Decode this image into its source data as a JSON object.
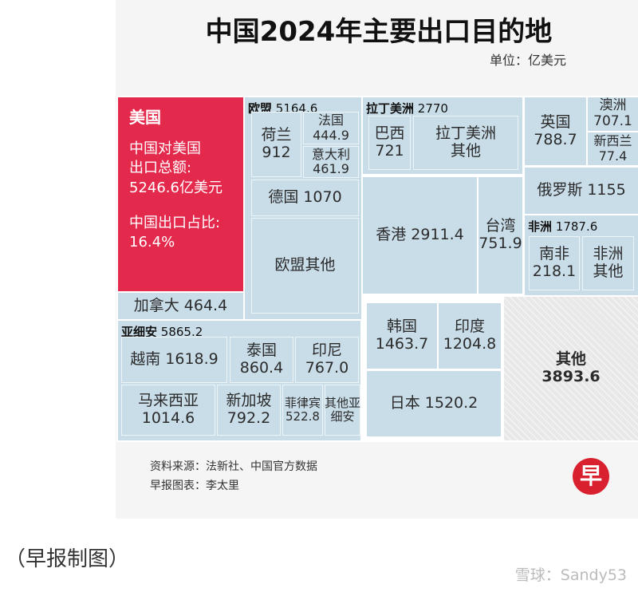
{
  "title": "中国2024年主要出口目的地",
  "unit": "单位：亿美元",
  "chart_data": {
    "type": "treemap",
    "color": "#c9dde9",
    "groups": [
      {
        "name": "美国",
        "value": 5246.6,
        "value_label": "5246.6亿美元",
        "value_caption": [
          "中国对美国",
          "出口总额:"
        ],
        "share": 16.4,
        "share_label": "16.4%",
        "share_caption": "中国出口占比:",
        "color": "#e42a4c"
      },
      {
        "name": "加拿大",
        "value": 464.4
      },
      {
        "name": "欧盟",
        "value": 5164.6,
        "children": [
          {
            "name": "荷兰",
            "value": 912
          },
          {
            "name": "法国",
            "value": 444.9
          },
          {
            "name": "意大利",
            "value": 461.9
          },
          {
            "name": "德国",
            "value": 1070
          },
          {
            "name": "欧盟其他"
          }
        ]
      },
      {
        "name": "拉丁美洲",
        "value": 2770,
        "children": [
          {
            "name": "巴西",
            "value": 721
          },
          {
            "name": "拉丁美洲其他"
          }
        ]
      },
      {
        "name": "英国",
        "value": 788.7
      },
      {
        "name": "澳洲",
        "value": 707.1
      },
      {
        "name": "新西兰",
        "value": 77.4
      },
      {
        "name": "俄罗斯",
        "value": 1155
      },
      {
        "name": "香港",
        "value": 2911.4
      },
      {
        "name": "台湾",
        "value": 751.9
      },
      {
        "name": "非洲",
        "value": 1787.6,
        "children": [
          {
            "name": "南非",
            "value": 218.1
          },
          {
            "name": "非洲其他"
          }
        ]
      },
      {
        "name": "亚细安",
        "value": 5865.2,
        "children": [
          {
            "name": "越南",
            "value": 1618.9
          },
          {
            "name": "泰国",
            "value": 860.4
          },
          {
            "name": "印尼",
            "value": 767,
            "value_label": "767.0"
          },
          {
            "name": "马来西亚",
            "value": 1014.6
          },
          {
            "name": "新加坡",
            "value": 792.2
          },
          {
            "name": "菲律宾",
            "value": 522.8
          },
          {
            "name": "其他亚细安"
          }
        ]
      },
      {
        "name": "韩国",
        "value": 1463.7
      },
      {
        "name": "印度",
        "value": 1204.8
      },
      {
        "name": "日本",
        "value": 1520.2
      },
      {
        "name": "其他",
        "value": 3893.6,
        "color": "#e8e8e8",
        "hatched": true
      }
    ]
  },
  "source": "资料来源：法新社、中国官方数据",
  "credit": "早报图表：李太里",
  "caption": "（早报制图）",
  "logo": "早",
  "watermark": "雪球：Sandy53"
}
